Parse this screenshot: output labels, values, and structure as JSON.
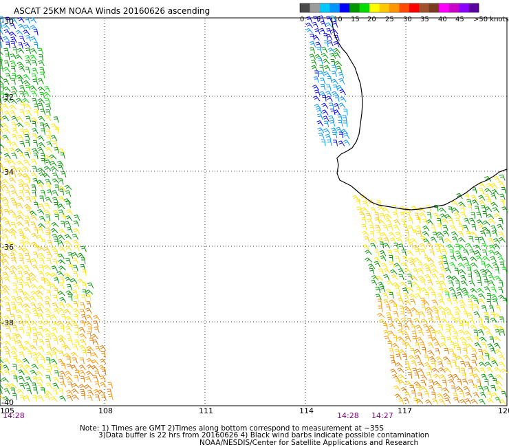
{
  "title": "ASCAT 25KM NOAA Winds 20160626 ascending",
  "colorbar": {
    "labels": [
      "0",
      "5",
      "10",
      "15",
      "20",
      "25",
      "30",
      "35",
      "40",
      "45",
      ">50 knots"
    ],
    "colors": [
      "#4a4a4a",
      "#9c9c9c",
      "#00c8ff",
      "#0096ff",
      "#0000ff",
      "#009600",
      "#00dc00",
      "#ffff00",
      "#ffc800",
      "#ff9600",
      "#ff4b00",
      "#ff0000",
      "#a0522d",
      "#7a3b1e",
      "#ff00ff",
      "#c800c8",
      "#8c00ff",
      "#5a00a0"
    ]
  },
  "axes": {
    "lon_labels": [
      "105",
      "108",
      "111",
      "114",
      "117",
      "120"
    ],
    "lat_labels": [
      "-30",
      "-32",
      "-34",
      "-36",
      "-38",
      "-40"
    ]
  },
  "pass_times": {
    "left": "14:28",
    "right_a": "14:28",
    "right_b": "14:27"
  },
  "notes": {
    "line1": "Note: 1) Times are GMT 2)Times along bottom correspond to measurement at ~35S",
    "line2": "3)Data buffer is 22 hrs from 20160626 4) Black wind barbs indicate possible contamination",
    "line3": "NOAA/NESDIS/Center for Satellite Applications and Research"
  },
  "palette": {
    "calm_blue": "#0000ff",
    "light_blue": "#0096ff",
    "green": "#009600",
    "light_green": "#00dc00",
    "yellow": "#ffe600",
    "gold": "#ffc800",
    "orange": "#ff9600",
    "dark_orange": "#e07800",
    "coastline": "#000000",
    "grid": "#000000",
    "time_label": "#800080"
  }
}
